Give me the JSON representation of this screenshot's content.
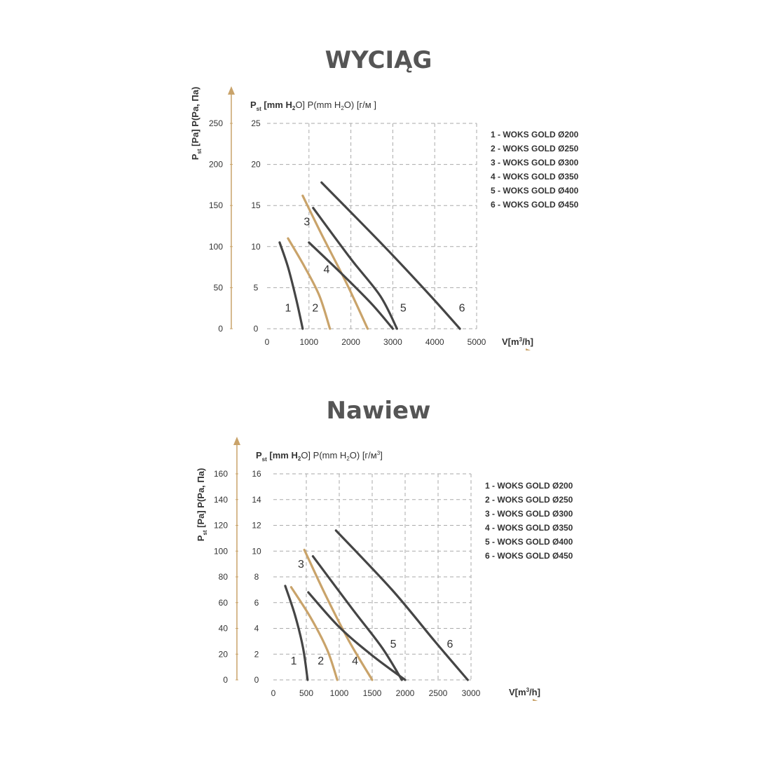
{
  "charts": [
    {
      "title": "WYCIĄG",
      "axis_label_inner": {
        "main": "P",
        "sub": "st",
        "rest": " [mm H",
        "h2": "2",
        "rest2": "O] P(mm H",
        "h2b": "2",
        "rest3": "O) [г/м ]"
      },
      "axis_label_outer": {
        "main": "P",
        "sub": "st",
        "rest": " [Pa] P(Pa, Па)"
      },
      "x_axis_label": {
        "main": "V[m",
        "sup": "3",
        "rest": "/h]"
      }
    },
    {
      "title": "Nawiew",
      "axis_label_inner": {
        "main": "P",
        "sub": "st",
        "rest": " [mm H",
        "h2": "2",
        "rest2": "O] P(mm H",
        "h2b": "2",
        "rest3": "O) [г/м",
        "sup": "3",
        "rest4": "]"
      },
      "axis_label_outer": {
        "main": "P",
        "sub": "st",
        "rest": " [Pa] P(Pa, Па)"
      },
      "x_axis_label": {
        "main": "V[m",
        "sup": "3",
        "rest": "/h]"
      }
    }
  ],
  "chart_data": [
    {
      "type": "line",
      "title": "WYCIĄG",
      "xlabel": "V[m³/h]",
      "ylabel": "Pst [Pa] P(Pa, Па)",
      "y2label": "Pst [mm H2O] P(mm H2O) [г/м ]",
      "xlim": [
        0,
        5000
      ],
      "ylim_mmH2O": [
        0,
        25
      ],
      "ylim_Pa": [
        0,
        250
      ],
      "x_ticks": [
        "0",
        "1000",
        "2000",
        "3000",
        "4000",
        "5000"
      ],
      "y_ticks_mmH2O": [
        "0",
        "5",
        "10",
        "15",
        "20",
        "25"
      ],
      "y_ticks_Pa": [
        "0",
        "50",
        "100",
        "150",
        "200",
        "250"
      ],
      "grid": true,
      "legend_position": "right",
      "legend": [
        "1 - WOKS GOLD Ø200",
        "2 - WOKS GOLD Ø250",
        "3 - WOKS GOLD Ø300",
        "4 - WOKS GOLD Ø350",
        "5 - WOKS GOLD Ø400",
        "6 - WOKS GOLD Ø450"
      ],
      "colors": {
        "dark": "#454545",
        "gold": "#c9a36a"
      },
      "series": [
        {
          "label": "1",
          "color": "dark",
          "label_at": [
            500,
            2.1
          ],
          "points": [
            [
              300,
              10.5
            ],
            [
              500,
              7.5
            ],
            [
              700,
              3.5
            ],
            [
              850,
              0
            ]
          ]
        },
        {
          "label": "2",
          "color": "gold",
          "label_at": [
            1150,
            2.1
          ],
          "points": [
            [
              500,
              11.0
            ],
            [
              900,
              7.5
            ],
            [
              1250,
              4.0
            ],
            [
              1500,
              0
            ]
          ]
        },
        {
          "label": "3",
          "color": "gold",
          "label_at": [
            950,
            12.6
          ],
          "points": [
            [
              850,
              16.2
            ],
            [
              1300,
              11.5
            ],
            [
              1900,
              5.5
            ],
            [
              2400,
              0
            ]
          ]
        },
        {
          "label": "4",
          "color": "dark",
          "label_at": [
            1420,
            6.8
          ],
          "points": [
            [
              1000,
              10.5
            ],
            [
              1800,
              6.6
            ],
            [
              2500,
              3.0
            ],
            [
              3000,
              0
            ]
          ]
        },
        {
          "label": "5",
          "color": "dark",
          "label_at": [
            3250,
            2.1
          ],
          "points": [
            [
              1100,
              14.7
            ],
            [
              2000,
              8.5
            ],
            [
              2700,
              4.0
            ],
            [
              3100,
              0
            ]
          ]
        },
        {
          "label": "6",
          "color": "dark",
          "label_at": [
            4650,
            2.1
          ],
          "points": [
            [
              1300,
              17.8
            ],
            [
              2800,
              10.0
            ],
            [
              3900,
              4.0
            ],
            [
              4600,
              0
            ]
          ]
        }
      ]
    },
    {
      "type": "line",
      "title": "Nawiew",
      "xlabel": "V[m³/h]",
      "ylabel": "Pst [Pa] P(Pa, Па)",
      "y2label": "Pst [mm H2O] P(mm H2O) [г/м³]",
      "xlim": [
        0,
        3000
      ],
      "ylim_mmH2O": [
        0,
        16
      ],
      "ylim_Pa": [
        0,
        160
      ],
      "x_ticks": [
        "0",
        "500",
        "1000",
        "1500",
        "2000",
        "2500",
        "3000"
      ],
      "y_ticks_mmH2O": [
        "0",
        "2",
        "4",
        "6",
        "8",
        "10",
        "12",
        "14",
        "16"
      ],
      "y_ticks_Pa": [
        "0",
        "20",
        "40",
        "60",
        "80",
        "100",
        "120",
        "140",
        "160"
      ],
      "grid": true,
      "legend_position": "right",
      "legend": [
        "1 - WOKS GOLD Ø200",
        "2 - WOKS GOLD Ø250",
        "3 - WOKS GOLD Ø300",
        "4 - WOKS GOLD Ø350",
        "5 - WOKS GOLD Ø400",
        "6 - WOKS GOLD Ø450"
      ],
      "colors": {
        "dark": "#454545",
        "gold": "#c9a36a"
      },
      "series": [
        {
          "label": "1",
          "color": "dark",
          "label_at": [
            310,
            1.2
          ],
          "points": [
            [
              180,
              7.3
            ],
            [
              330,
              5.0
            ],
            [
              450,
              2.5
            ],
            [
              520,
              0
            ]
          ]
        },
        {
          "label": "2",
          "color": "gold",
          "label_at": [
            720,
            1.2
          ],
          "points": [
            [
              270,
              7.2
            ],
            [
              570,
              4.8
            ],
            [
              820,
              2.3
            ],
            [
              970,
              0
            ]
          ]
        },
        {
          "label": "3",
          "color": "gold",
          "label_at": [
            420,
            8.7
          ],
          "points": [
            [
              470,
              10.1
            ],
            [
              800,
              6.5
            ],
            [
              1150,
              3.0
            ],
            [
              1500,
              0
            ]
          ]
        },
        {
          "label": "4",
          "color": "dark",
          "label_at": [
            1240,
            1.2
          ],
          "points": [
            [
              530,
              6.8
            ],
            [
              1000,
              4.1
            ],
            [
              1500,
              1.9
            ],
            [
              2000,
              0
            ]
          ]
        },
        {
          "label": "5",
          "color": "dark",
          "label_at": [
            1820,
            2.5
          ],
          "points": [
            [
              600,
              9.6
            ],
            [
              1200,
              5.5
            ],
            [
              1650,
              2.5
            ],
            [
              1950,
              0
            ]
          ]
        },
        {
          "label": "6",
          "color": "dark",
          "label_at": [
            2680,
            2.5
          ],
          "points": [
            [
              950,
              11.6
            ],
            [
              1800,
              7.0
            ],
            [
              2450,
              3.0
            ],
            [
              2950,
              0
            ]
          ]
        }
      ]
    }
  ]
}
